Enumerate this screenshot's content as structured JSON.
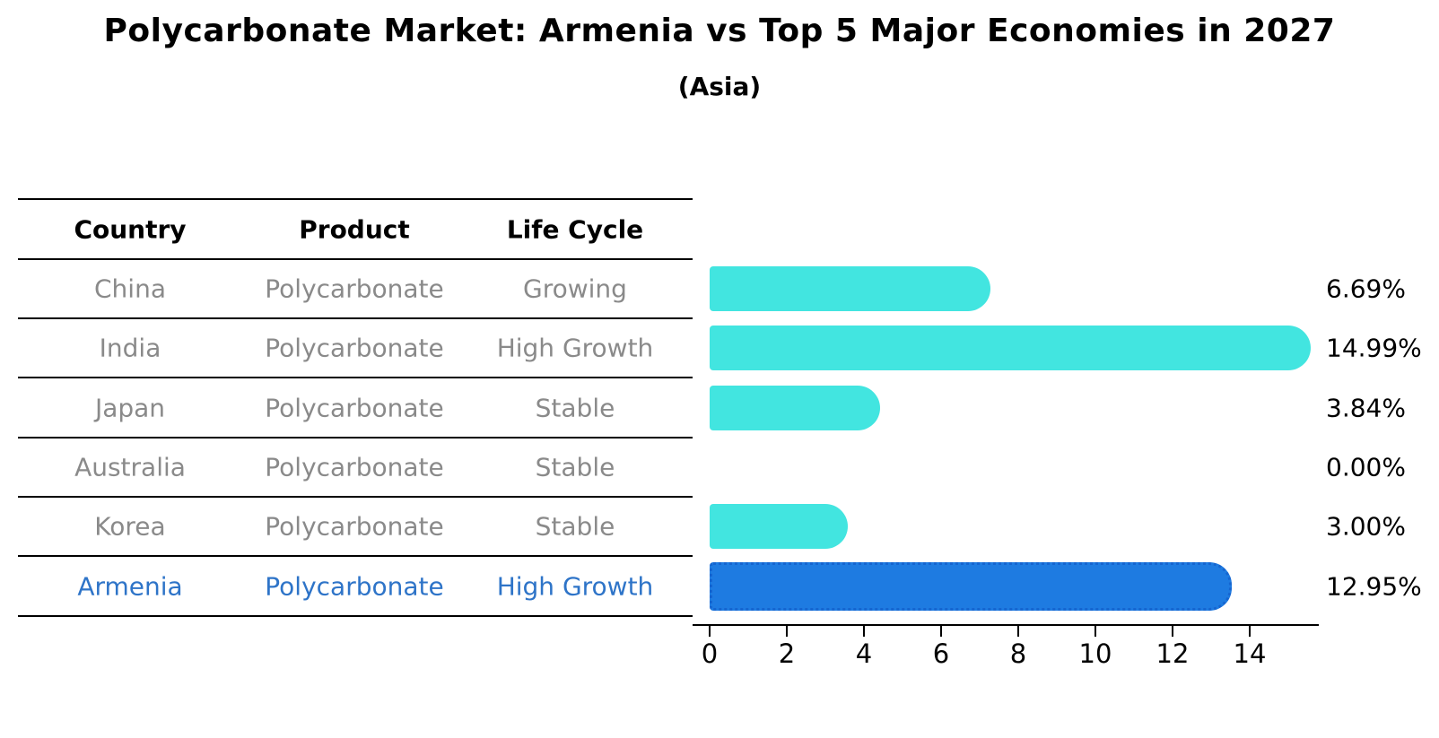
{
  "title": "Polycarbonate Market: Armenia vs Top 5 Major Economies in 2027",
  "subtitle": "(Asia)",
  "table": {
    "headers": [
      "Country",
      "Product",
      "Life Cycle"
    ],
    "rows": [
      {
        "country": "China",
        "product": "Polycarbonate",
        "life_cycle": "Growing",
        "value": 6.69,
        "value_label": "6.69%",
        "highlight": false
      },
      {
        "country": "India",
        "product": "Polycarbonate",
        "life_cycle": "High Growth",
        "value": 14.99,
        "value_label": "14.99%",
        "highlight": false
      },
      {
        "country": "Japan",
        "product": "Polycarbonate",
        "life_cycle": "Stable",
        "value": 3.84,
        "value_label": "3.84%",
        "highlight": false
      },
      {
        "country": "Australia",
        "product": "Polycarbonate",
        "life_cycle": "Stable",
        "value": 0.0,
        "value_label": "0.00%",
        "highlight": false
      },
      {
        "country": "Korea",
        "product": "Polycarbonate",
        "life_cycle": "Stable",
        "value": 3.0,
        "value_label": "3.00%",
        "highlight": false
      },
      {
        "country": "Armenia",
        "product": "Polycarbonate",
        "life_cycle": "High Growth",
        "value": 12.95,
        "value_label": "12.95%",
        "highlight": true
      }
    ]
  },
  "chart_data": {
    "type": "bar",
    "orientation": "horizontal",
    "title": "Polycarbonate Market: Armenia vs Top 5 Major Economies in 2027",
    "subtitle": "(Asia)",
    "categories": [
      "China",
      "India",
      "Japan",
      "Australia",
      "Korea",
      "Armenia"
    ],
    "values": [
      6.69,
      14.99,
      3.84,
      0.0,
      3.0,
      12.95
    ],
    "value_labels": [
      "6.69%",
      "14.99%",
      "3.84%",
      "0.00%",
      "3.00%",
      "12.95%"
    ],
    "highlight_index": 5,
    "xlabel": "",
    "ylabel": "",
    "xlim": [
      -0.45,
      15.8
    ],
    "xticks": [
      0,
      2,
      4,
      6,
      8,
      10,
      12,
      14
    ],
    "grid": false,
    "legend": "none"
  },
  "colors": {
    "background": "#ffffff",
    "bar": "#42e5e0",
    "highlight_bar": "#1e7be1",
    "highlight_bar_border": "#1565d0",
    "highlight_text": "#2e74c8",
    "cell_text": "#8a8a8a",
    "axis": "#000000"
  }
}
